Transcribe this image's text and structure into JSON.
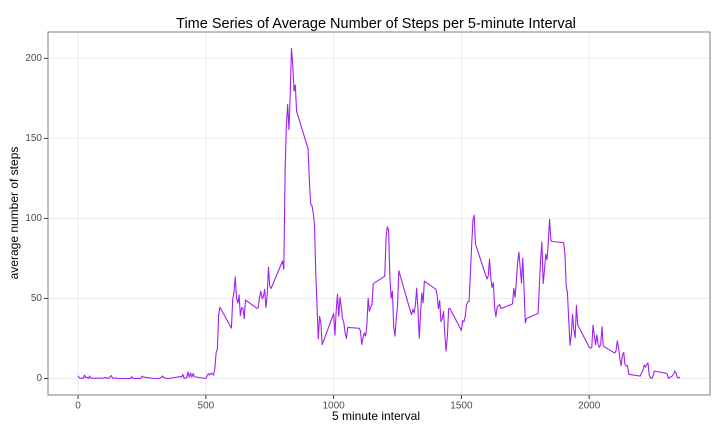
{
  "chart_data": {
    "type": "line",
    "title": "Time Series of Average Number of Steps per 5-minute Interval",
    "x_label": "5 minute interval",
    "y_label": "average number of steps",
    "x": [
      0,
      5,
      10,
      15,
      20,
      25,
      30,
      35,
      40,
      45,
      50,
      55,
      100,
      105,
      110,
      115,
      120,
      125,
      130,
      135,
      140,
      145,
      150,
      155,
      200,
      205,
      210,
      215,
      220,
      225,
      230,
      235,
      240,
      245,
      250,
      255,
      300,
      305,
      310,
      315,
      320,
      325,
      330,
      335,
      340,
      345,
      350,
      355,
      400,
      405,
      410,
      415,
      420,
      425,
      430,
      435,
      440,
      445,
      450,
      455,
      500,
      505,
      510,
      515,
      520,
      525,
      530,
      535,
      540,
      545,
      550,
      555,
      600,
      605,
      610,
      615,
      620,
      625,
      630,
      635,
      640,
      645,
      650,
      655,
      700,
      705,
      710,
      715,
      720,
      725,
      730,
      735,
      740,
      745,
      750,
      755,
      800,
      805,
      810,
      815,
      820,
      825,
      830,
      835,
      840,
      845,
      850,
      855,
      900,
      905,
      910,
      915,
      920,
      925,
      930,
      935,
      940,
      945,
      950,
      955,
      1000,
      1005,
      1010,
      1015,
      1020,
      1025,
      1030,
      1035,
      1040,
      1045,
      1050,
      1055,
      1100,
      1105,
      1110,
      1115,
      1120,
      1125,
      1130,
      1135,
      1140,
      1145,
      1150,
      1155,
      1200,
      1205,
      1210,
      1215,
      1220,
      1225,
      1230,
      1235,
      1240,
      1245,
      1250,
      1255,
      1300,
      1305,
      1310,
      1315,
      1320,
      1325,
      1330,
      1335,
      1340,
      1345,
      1350,
      1355,
      1400,
      1405,
      1410,
      1415,
      1420,
      1425,
      1430,
      1435,
      1440,
      1445,
      1450,
      1455,
      1500,
      1505,
      1510,
      1515,
      1520,
      1525,
      1530,
      1535,
      1540,
      1545,
      1550,
      1555,
      1600,
      1605,
      1610,
      1615,
      1620,
      1625,
      1630,
      1635,
      1640,
      1645,
      1650,
      1655,
      1700,
      1705,
      1710,
      1715,
      1720,
      1725,
      1730,
      1735,
      1740,
      1745,
      1750,
      1755,
      1800,
      1805,
      1810,
      1815,
      1820,
      1825,
      1830,
      1835,
      1840,
      1845,
      1850,
      1855,
      1900,
      1905,
      1910,
      1915,
      1920,
      1925,
      1930,
      1935,
      1940,
      1945,
      1950,
      1955,
      2000,
      2005,
      2010,
      2015,
      2020,
      2025,
      2030,
      2035,
      2040,
      2045,
      2050,
      2055,
      2100,
      2105,
      2110,
      2115,
      2120,
      2125,
      2130,
      2135,
      2140,
      2145,
      2150,
      2155,
      2200,
      2205,
      2210,
      2215,
      2220,
      2225,
      2230,
      2235,
      2240,
      2245,
      2250,
      2255,
      2300,
      2305,
      2310,
      2315,
      2320,
      2325,
      2330,
      2335,
      2340,
      2345,
      2350,
      2355
    ],
    "series": [
      {
        "name": "average number of steps",
        "color": "#a020f0",
        "values": [
          1.7,
          0.3,
          0.1,
          0.2,
          0.1,
          2.1,
          0.5,
          0.9,
          0,
          1.5,
          0.3,
          0.1,
          0.3,
          0.7,
          0.2,
          0.3,
          0,
          1.1,
          1.8,
          0.2,
          0.2,
          0.4,
          0.3,
          0,
          0,
          0,
          1.1,
          0,
          0,
          0.1,
          0,
          0.2,
          0,
          0,
          1.5,
          0.9,
          0,
          0,
          0,
          0,
          0.2,
          0.6,
          1.6,
          0.6,
          0.5,
          0.1,
          0,
          0,
          1.2,
          0.9,
          2.6,
          0,
          0.3,
          0.4,
          4.1,
          0.7,
          3.5,
          0.8,
          3.1,
          1.1,
          0,
          1.6,
          3,
          2.2,
          3.3,
          3,
          2.1,
          6.1,
          16,
          18.3,
          39.5,
          44.5,
          31.5,
          49.3,
          53.8,
          63.5,
          50,
          47.1,
          52.2,
          39.3,
          44,
          44.2,
          37.4,
          49,
          43.8,
          44.4,
          50.5,
          54.5,
          49.9,
          51,
          55.7,
          44.3,
          52.3,
          69.5,
          57.8,
          56.2,
          73.4,
          68.2,
          129.4,
          157.5,
          171.2,
          155.4,
          177.3,
          206.2,
          195.9,
          179.6,
          183.4,
          167,
          143.5,
          124,
          109.1,
          108.1,
          103.7,
          96,
          66.2,
          45.2,
          24.8,
          38.8,
          35,
          21.1,
          40.6,
          27,
          42.4,
          52.7,
          38.9,
          50.8,
          44.3,
          37.4,
          34.7,
          28.3,
          25.1,
          31.9,
          31.4,
          29.7,
          21.3,
          25.5,
          28.4,
          26.5,
          33.4,
          50,
          42,
          44.6,
          46,
          59.3,
          63.9,
          87.7,
          94.8,
          92.8,
          63.4,
          50.2,
          54.5,
          32.4,
          26.5,
          37.7,
          45.1,
          67.3,
          42.3,
          39.9,
          43.3,
          41,
          46.2,
          56.4,
          42.8,
          25.1,
          40,
          53.5,
          47.3,
          60.8,
          55.8,
          52,
          43.6,
          48.7,
          35.5,
          37.5,
          41.8,
          27.5,
          17.1,
          26.1,
          43.6,
          43.8,
          30,
          36.1,
          35.5,
          38.8,
          46,
          47.8,
          48.1,
          65.3,
          82.9,
          98.7,
          102.1,
          84,
          62.1,
          64.1,
          74.5,
          63.2,
          56.9,
          59.8,
          43.9,
          38.6,
          44.7,
          45.5,
          46.2,
          43.7,
          46.6,
          56.3,
          50.7,
          61.2,
          72.7,
          78.9,
          68.9,
          59.7,
          75.1,
          56.5,
          34.8,
          37.5,
          40.7,
          58,
          74.7,
          85.3,
          59.3,
          67.8,
          77.7,
          74.2,
          85.3,
          99.5,
          86.6,
          85.6,
          84.9,
          77.8,
          58,
          53.4,
          36.3,
          20.7,
          27.4,
          40,
          30.2,
          25.5,
          45.7,
          33.5,
          19.6,
          19,
          19.3,
          33.3,
          26.8,
          21.2,
          27.3,
          21.3,
          19.5,
          21.3,
          32.3,
          20.2,
          15.9,
          17.2,
          23.5,
          19.2,
          12.5,
          8,
          14.7,
          16.3,
          8.7,
          7.8,
          8.1,
          2.6,
          1.5,
          3.7,
          4.8,
          8.5,
          7.1,
          8.7,
          9.8,
          2.2,
          0.3,
          0.1,
          1.6,
          4.6,
          3.3,
          2.8,
          0,
          0.8,
          1,
          1.6,
          2.6,
          4.7,
          3.3,
          0.6,
          0.2,
          1.1
        ]
      }
    ],
    "xlim": [
      -117.75,
      2472.75
    ],
    "ylim": [
      -10.31,
      216.48
    ],
    "xticks": [
      0,
      500,
      1000,
      1500,
      2000
    ],
    "yticks": [
      0,
      50,
      100,
      150,
      200
    ],
    "grid": true
  }
}
